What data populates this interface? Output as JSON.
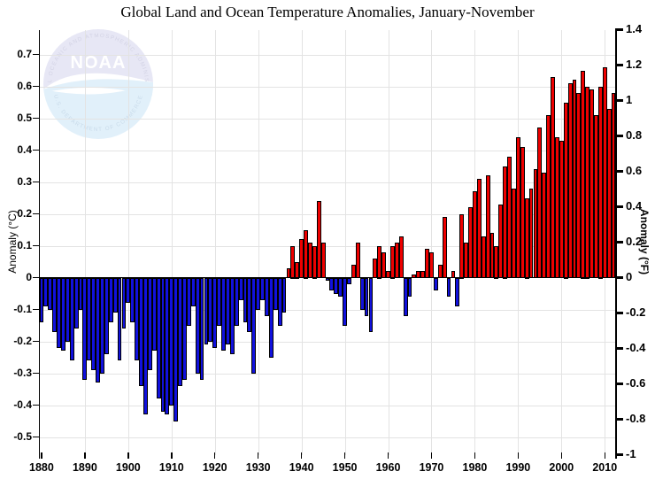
{
  "chart_data": {
    "type": "bar",
    "title": "Global Land and Ocean Temperature Anomalies, January-November",
    "x": [
      1880,
      1881,
      1882,
      1883,
      1884,
      1885,
      1886,
      1887,
      1888,
      1889,
      1890,
      1891,
      1892,
      1893,
      1894,
      1895,
      1896,
      1897,
      1898,
      1899,
      1900,
      1901,
      1902,
      1903,
      1904,
      1905,
      1906,
      1907,
      1908,
      1909,
      1910,
      1911,
      1912,
      1913,
      1914,
      1915,
      1916,
      1917,
      1918,
      1919,
      1920,
      1921,
      1922,
      1923,
      1924,
      1925,
      1926,
      1927,
      1928,
      1929,
      1930,
      1931,
      1932,
      1933,
      1934,
      1935,
      1936,
      1937,
      1938,
      1939,
      1940,
      1941,
      1942,
      1943,
      1944,
      1945,
      1946,
      1947,
      1948,
      1949,
      1950,
      1951,
      1952,
      1953,
      1954,
      1955,
      1956,
      1957,
      1958,
      1959,
      1960,
      1961,
      1962,
      1963,
      1964,
      1965,
      1966,
      1967,
      1968,
      1969,
      1970,
      1971,
      1972,
      1973,
      1974,
      1975,
      1976,
      1977,
      1978,
      1979,
      1980,
      1981,
      1982,
      1983,
      1984,
      1985,
      1986,
      1987,
      1988,
      1989,
      1990,
      1991,
      1992,
      1993,
      1994,
      1995,
      1996,
      1997,
      1998,
      1999,
      2000,
      2001,
      2002,
      2003,
      2004,
      2005,
      2006,
      2007,
      2008,
      2009,
      2010,
      2011,
      2012
    ],
    "series": [
      {
        "name": "anomaly_c",
        "values": [
          -0.14,
          -0.09,
          -0.1,
          -0.17,
          -0.22,
          -0.23,
          -0.2,
          -0.26,
          -0.16,
          -0.1,
          -0.32,
          -0.26,
          -0.29,
          -0.33,
          -0.3,
          -0.24,
          -0.14,
          -0.11,
          -0.26,
          -0.16,
          -0.08,
          -0.14,
          -0.26,
          -0.34,
          -0.43,
          -0.29,
          -0.23,
          -0.38,
          -0.42,
          -0.43,
          -0.4,
          -0.45,
          -0.34,
          -0.32,
          -0.15,
          -0.09,
          -0.3,
          -0.32,
          -0.21,
          -0.2,
          -0.22,
          -0.15,
          -0.23,
          -0.21,
          -0.24,
          -0.15,
          -0.07,
          -0.14,
          -0.17,
          -0.3,
          -0.1,
          -0.07,
          -0.12,
          -0.25,
          -0.1,
          -0.15,
          -0.11,
          0.03,
          0.1,
          0.05,
          0.12,
          0.15,
          0.11,
          0.1,
          0.24,
          0.11,
          -0.01,
          -0.04,
          -0.05,
          -0.06,
          -0.15,
          -0.02,
          0.04,
          0.11,
          -0.1,
          -0.12,
          -0.17,
          0.06,
          0.1,
          0.08,
          0.02,
          0.1,
          0.11,
          0.13,
          -0.12,
          -0.06,
          0.01,
          0.02,
          0.02,
          0.09,
          0.08,
          -0.04,
          0.04,
          0.19,
          -0.06,
          0.02,
          -0.09,
          0.2,
          0.11,
          0.22,
          0.27,
          0.31,
          0.13,
          0.32,
          0.14,
          0.1,
          0.23,
          0.35,
          0.38,
          0.28,
          0.44,
          0.41,
          0.25,
          0.28,
          0.34,
          0.47,
          0.33,
          0.51,
          0.63,
          0.44,
          0.43,
          0.55,
          0.61,
          0.62,
          0.58,
          0.65,
          0.6,
          0.59,
          0.51,
          0.6,
          0.66,
          0.53,
          0.58
        ]
      }
    ],
    "positive_color": "#ee0000",
    "negative_color": "#1111dd",
    "grid": true,
    "ylim_c": [
      -0.556,
      0.778
    ],
    "y_left": {
      "label": "Anomaly (°C)",
      "tick_values": [
        0.7,
        0.6,
        0.5,
        0.4,
        0.3,
        0.2,
        0.1,
        0,
        -0.1,
        -0.2,
        -0.3,
        -0.4,
        -0.5
      ],
      "tick_labels": [
        "0.7",
        "0.6",
        "0.5",
        "0.4",
        "0.3",
        "0.2",
        "0.1",
        "0",
        "-0.1",
        "-0.2",
        "-0.3",
        "-0.4",
        "-0.5"
      ]
    },
    "y_right": {
      "label": "Anomaly (°F)",
      "tick_values": [
        1.4,
        1.2,
        1.0,
        0.8,
        0.6,
        0.4,
        0.2,
        0,
        -0.2,
        -0.4,
        -0.6,
        -0.8,
        -1.0
      ],
      "tick_labels": [
        "1.4",
        "1.2",
        "1",
        "0.8",
        "0.6",
        "0.4",
        "0.2",
        "0",
        "-0.2",
        "-0.4",
        "-0.6",
        "-0.8",
        "-1"
      ]
    },
    "x_axis": {
      "tick_values": [
        1880,
        1890,
        1900,
        1910,
        1920,
        1930,
        1940,
        1950,
        1960,
        1970,
        1980,
        1990,
        2000,
        2010
      ],
      "tick_labels": [
        "1880",
        "1890",
        "1900",
        "1910",
        "1920",
        "1930",
        "1940",
        "1950",
        "1960",
        "1970",
        "1980",
        "1990",
        "2000",
        "2010"
      ]
    },
    "watermark": {
      "org": "NOAA",
      "ring_top_text": "NATIONAL OCEANIC AND ATMOSPHERIC ADMINISTRATION",
      "ring_bottom_text": "U.S. DEPARTMENT OF COMMERCE"
    }
  }
}
